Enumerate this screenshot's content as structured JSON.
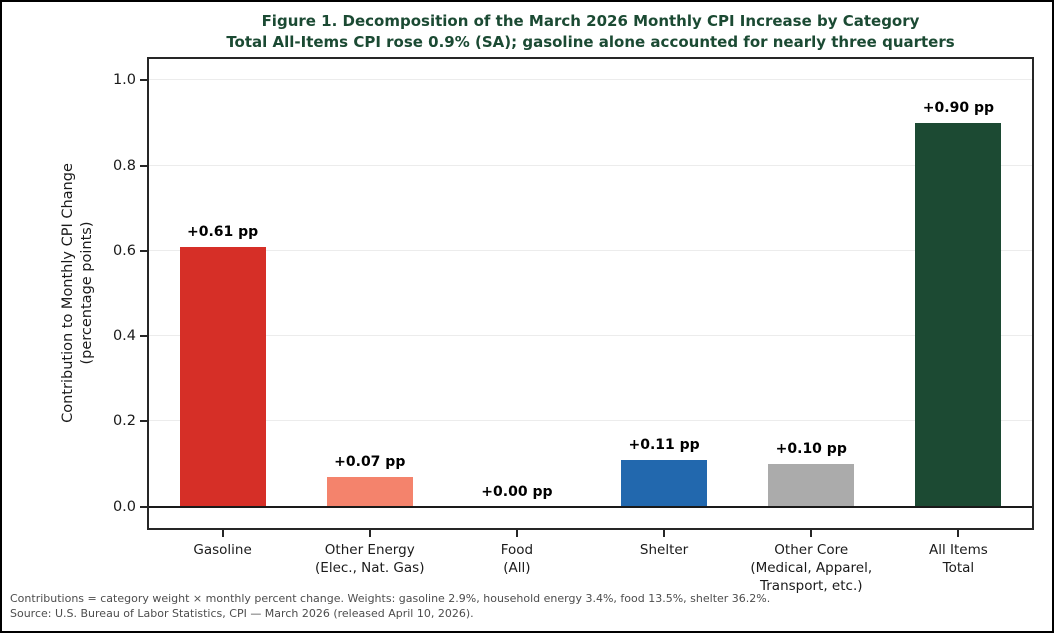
{
  "figure": {
    "title": "Figure 1. Decomposition of the March 2026 Monthly CPI Increase by Category",
    "subtitle": "Total All-Items CPI rose 0.9% (SA); gasoline alone accounted for nearly three quarters",
    "title_color": "#1b4a33"
  },
  "chart_data": {
    "type": "bar",
    "categories": [
      "Gasoline",
      "Other Energy\n(Elec., Nat. Gas)",
      "Food\n(All)",
      "Shelter",
      "Other Core\n(Medical, Apparel,\nTransport, etc.)",
      "All Items\nTotal"
    ],
    "values": [
      0.61,
      0.07,
      0.0,
      0.11,
      0.1,
      0.9
    ],
    "bar_labels": [
      "+0.61 pp",
      "+0.07 pp",
      "+0.00 pp",
      "+0.11 pp",
      "+0.10 pp",
      "+0.90 pp"
    ],
    "bar_colors": [
      "#d62f27",
      "#f4836c",
      "#ababab",
      "#2268ae",
      "#ababab",
      "#1c4a33"
    ],
    "title": "Figure 1. Decomposition of the March 2026 Monthly CPI Increase by Category",
    "subtitle": "Total All-Items CPI rose 0.9% (SA); gasoline alone accounted for nearly three quarters",
    "xlabel": "",
    "ylabel": "Contribution to Monthly CPI Change\n(percentage points)",
    "yticks": [
      0.0,
      0.2,
      0.4,
      0.6,
      0.8,
      1.0
    ],
    "ytick_labels": [
      "0.0",
      "0.2",
      "0.4",
      "0.6",
      "0.8",
      "1.0"
    ],
    "ylim": [
      -0.05,
      1.05
    ],
    "grid": true,
    "legend": false
  },
  "footnote": {
    "line1": "Contributions = category weight × monthly percent change. Weights: gasoline 2.9%, household energy 3.4%, food 13.5%, shelter 36.2%.",
    "line2": "Source: U.S. Bureau of Labor Statistics, CPI — March 2026 (released April 10, 2026)."
  }
}
